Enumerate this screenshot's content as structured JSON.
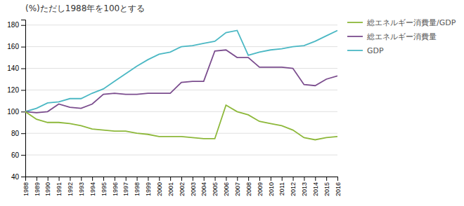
{
  "chart_data": {
    "type": "line",
    "title": "(%)ただし1988年を100とする",
    "x": [
      1988,
      1989,
      1990,
      1991,
      1992,
      1993,
      1994,
      1995,
      1996,
      1997,
      1998,
      1999,
      2000,
      2001,
      2002,
      2003,
      2004,
      2005,
      2006,
      2007,
      2008,
      2009,
      2010,
      2011,
      2012,
      2013,
      2014,
      2015,
      2016
    ],
    "series": [
      {
        "name": "GDP",
        "color": "#4bb8c4",
        "values": [
          100,
          103,
          108,
          109,
          112,
          112,
          117,
          121,
          128,
          135,
          142,
          148,
          153,
          155,
          160,
          161,
          163,
          165,
          173,
          175,
          152,
          155,
          157,
          158,
          160,
          161,
          165,
          170,
          175
        ]
      },
      {
        "name": "総エネルギー消費量",
        "color": "#7b4d8e",
        "values": [
          100,
          99,
          100,
          107,
          104,
          103,
          107,
          116,
          117,
          116,
          116,
          117,
          117,
          117,
          127,
          128,
          128,
          156,
          157,
          150,
          150,
          141,
          141,
          141,
          140,
          125,
          124,
          130,
          133
        ]
      },
      {
        "name": "総エネルギー消費量/GDP",
        "color": "#8db83a",
        "values": [
          100,
          93,
          90,
          90,
          89,
          87,
          84,
          83,
          82,
          82,
          80,
          79,
          77,
          77,
          77,
          76,
          75,
          75,
          106,
          100,
          97,
          91,
          89,
          87,
          83,
          76,
          74,
          76,
          77
        ]
      }
    ],
    "xlim": [
      1988,
      2016
    ],
    "xticks": [
      1988,
      1989,
      1990,
      1991,
      1992,
      1993,
      1994,
      1995,
      1996,
      1997,
      1998,
      1999,
      2000,
      2001,
      2002,
      2003,
      2004,
      2005,
      2006,
      2007,
      2008,
      2009,
      2010,
      2011,
      2012,
      2013,
      2014,
      2015,
      2016
    ],
    "ylim": [
      40,
      185
    ],
    "yticks": [
      40,
      60,
      80,
      100,
      120,
      140,
      160,
      180
    ],
    "grid": true,
    "legend": "right"
  }
}
